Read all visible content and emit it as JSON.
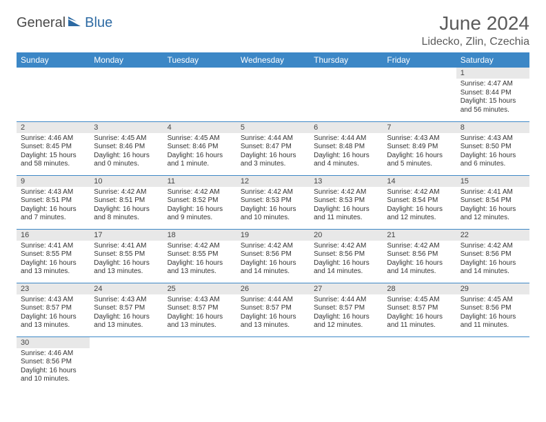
{
  "logo": {
    "part1": "General",
    "part2": "Blue"
  },
  "title": "June 2024",
  "location": "Lidecko, Zlin, Czechia",
  "colors": {
    "header_bg": "#3c87c6",
    "header_text": "#ffffff",
    "daynum_bg": "#e8e8e8",
    "cell_border": "#3c87c6",
    "logo_gray": "#4a4a4a",
    "logo_blue": "#2d6aa3",
    "title_color": "#5a5a5a"
  },
  "day_headers": [
    "Sunday",
    "Monday",
    "Tuesday",
    "Wednesday",
    "Thursday",
    "Friday",
    "Saturday"
  ],
  "weeks": [
    [
      {
        "num": "",
        "sunrise": "",
        "sunset": "",
        "daylight": ""
      },
      {
        "num": "",
        "sunrise": "",
        "sunset": "",
        "daylight": ""
      },
      {
        "num": "",
        "sunrise": "",
        "sunset": "",
        "daylight": ""
      },
      {
        "num": "",
        "sunrise": "",
        "sunset": "",
        "daylight": ""
      },
      {
        "num": "",
        "sunrise": "",
        "sunset": "",
        "daylight": ""
      },
      {
        "num": "",
        "sunrise": "",
        "sunset": "",
        "daylight": ""
      },
      {
        "num": "1",
        "sunrise": "Sunrise: 4:47 AM",
        "sunset": "Sunset: 8:44 PM",
        "daylight": "Daylight: 15 hours and 56 minutes."
      }
    ],
    [
      {
        "num": "2",
        "sunrise": "Sunrise: 4:46 AM",
        "sunset": "Sunset: 8:45 PM",
        "daylight": "Daylight: 15 hours and 58 minutes."
      },
      {
        "num": "3",
        "sunrise": "Sunrise: 4:45 AM",
        "sunset": "Sunset: 8:46 PM",
        "daylight": "Daylight: 16 hours and 0 minutes."
      },
      {
        "num": "4",
        "sunrise": "Sunrise: 4:45 AM",
        "sunset": "Sunset: 8:46 PM",
        "daylight": "Daylight: 16 hours and 1 minute."
      },
      {
        "num": "5",
        "sunrise": "Sunrise: 4:44 AM",
        "sunset": "Sunset: 8:47 PM",
        "daylight": "Daylight: 16 hours and 3 minutes."
      },
      {
        "num": "6",
        "sunrise": "Sunrise: 4:44 AM",
        "sunset": "Sunset: 8:48 PM",
        "daylight": "Daylight: 16 hours and 4 minutes."
      },
      {
        "num": "7",
        "sunrise": "Sunrise: 4:43 AM",
        "sunset": "Sunset: 8:49 PM",
        "daylight": "Daylight: 16 hours and 5 minutes."
      },
      {
        "num": "8",
        "sunrise": "Sunrise: 4:43 AM",
        "sunset": "Sunset: 8:50 PM",
        "daylight": "Daylight: 16 hours and 6 minutes."
      }
    ],
    [
      {
        "num": "9",
        "sunrise": "Sunrise: 4:43 AM",
        "sunset": "Sunset: 8:51 PM",
        "daylight": "Daylight: 16 hours and 7 minutes."
      },
      {
        "num": "10",
        "sunrise": "Sunrise: 4:42 AM",
        "sunset": "Sunset: 8:51 PM",
        "daylight": "Daylight: 16 hours and 8 minutes."
      },
      {
        "num": "11",
        "sunrise": "Sunrise: 4:42 AM",
        "sunset": "Sunset: 8:52 PM",
        "daylight": "Daylight: 16 hours and 9 minutes."
      },
      {
        "num": "12",
        "sunrise": "Sunrise: 4:42 AM",
        "sunset": "Sunset: 8:53 PM",
        "daylight": "Daylight: 16 hours and 10 minutes."
      },
      {
        "num": "13",
        "sunrise": "Sunrise: 4:42 AM",
        "sunset": "Sunset: 8:53 PM",
        "daylight": "Daylight: 16 hours and 11 minutes."
      },
      {
        "num": "14",
        "sunrise": "Sunrise: 4:42 AM",
        "sunset": "Sunset: 8:54 PM",
        "daylight": "Daylight: 16 hours and 12 minutes."
      },
      {
        "num": "15",
        "sunrise": "Sunrise: 4:41 AM",
        "sunset": "Sunset: 8:54 PM",
        "daylight": "Daylight: 16 hours and 12 minutes."
      }
    ],
    [
      {
        "num": "16",
        "sunrise": "Sunrise: 4:41 AM",
        "sunset": "Sunset: 8:55 PM",
        "daylight": "Daylight: 16 hours and 13 minutes."
      },
      {
        "num": "17",
        "sunrise": "Sunrise: 4:41 AM",
        "sunset": "Sunset: 8:55 PM",
        "daylight": "Daylight: 16 hours and 13 minutes."
      },
      {
        "num": "18",
        "sunrise": "Sunrise: 4:42 AM",
        "sunset": "Sunset: 8:55 PM",
        "daylight": "Daylight: 16 hours and 13 minutes."
      },
      {
        "num": "19",
        "sunrise": "Sunrise: 4:42 AM",
        "sunset": "Sunset: 8:56 PM",
        "daylight": "Daylight: 16 hours and 14 minutes."
      },
      {
        "num": "20",
        "sunrise": "Sunrise: 4:42 AM",
        "sunset": "Sunset: 8:56 PM",
        "daylight": "Daylight: 16 hours and 14 minutes."
      },
      {
        "num": "21",
        "sunrise": "Sunrise: 4:42 AM",
        "sunset": "Sunset: 8:56 PM",
        "daylight": "Daylight: 16 hours and 14 minutes."
      },
      {
        "num": "22",
        "sunrise": "Sunrise: 4:42 AM",
        "sunset": "Sunset: 8:56 PM",
        "daylight": "Daylight: 16 hours and 14 minutes."
      }
    ],
    [
      {
        "num": "23",
        "sunrise": "Sunrise: 4:43 AM",
        "sunset": "Sunset: 8:57 PM",
        "daylight": "Daylight: 16 hours and 13 minutes."
      },
      {
        "num": "24",
        "sunrise": "Sunrise: 4:43 AM",
        "sunset": "Sunset: 8:57 PM",
        "daylight": "Daylight: 16 hours and 13 minutes."
      },
      {
        "num": "25",
        "sunrise": "Sunrise: 4:43 AM",
        "sunset": "Sunset: 8:57 PM",
        "daylight": "Daylight: 16 hours and 13 minutes."
      },
      {
        "num": "26",
        "sunrise": "Sunrise: 4:44 AM",
        "sunset": "Sunset: 8:57 PM",
        "daylight": "Daylight: 16 hours and 13 minutes."
      },
      {
        "num": "27",
        "sunrise": "Sunrise: 4:44 AM",
        "sunset": "Sunset: 8:57 PM",
        "daylight": "Daylight: 16 hours and 12 minutes."
      },
      {
        "num": "28",
        "sunrise": "Sunrise: 4:45 AM",
        "sunset": "Sunset: 8:57 PM",
        "daylight": "Daylight: 16 hours and 11 minutes."
      },
      {
        "num": "29",
        "sunrise": "Sunrise: 4:45 AM",
        "sunset": "Sunset: 8:56 PM",
        "daylight": "Daylight: 16 hours and 11 minutes."
      }
    ],
    [
      {
        "num": "30",
        "sunrise": "Sunrise: 4:46 AM",
        "sunset": "Sunset: 8:56 PM",
        "daylight": "Daylight: 16 hours and 10 minutes."
      },
      {
        "num": "",
        "sunrise": "",
        "sunset": "",
        "daylight": ""
      },
      {
        "num": "",
        "sunrise": "",
        "sunset": "",
        "daylight": ""
      },
      {
        "num": "",
        "sunrise": "",
        "sunset": "",
        "daylight": ""
      },
      {
        "num": "",
        "sunrise": "",
        "sunset": "",
        "daylight": ""
      },
      {
        "num": "",
        "sunrise": "",
        "sunset": "",
        "daylight": ""
      },
      {
        "num": "",
        "sunrise": "",
        "sunset": "",
        "daylight": ""
      }
    ]
  ]
}
